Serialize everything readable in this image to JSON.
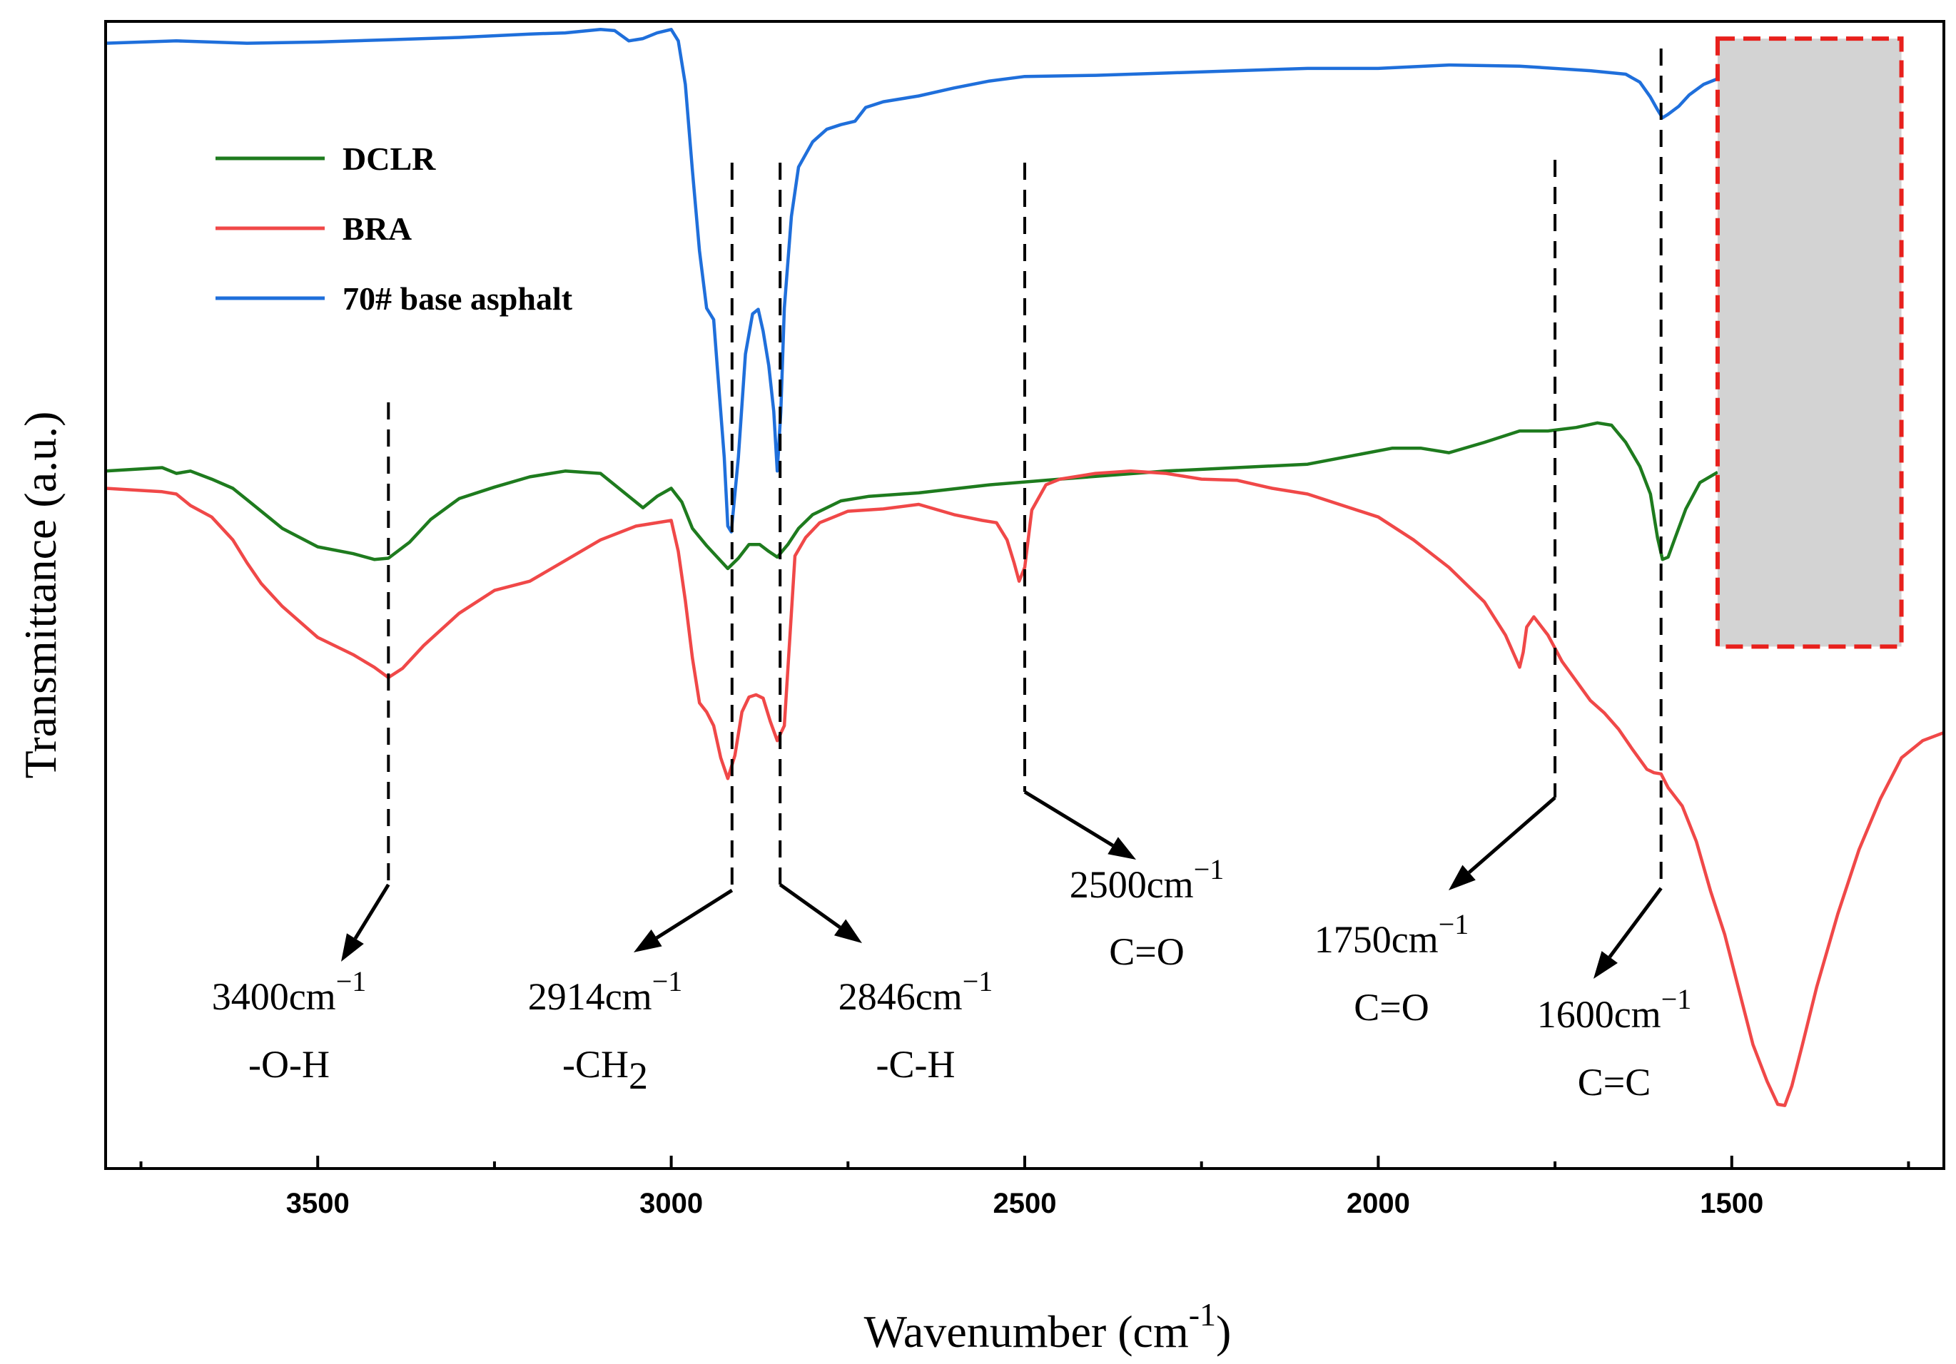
{
  "chart_data": {
    "type": "line",
    "title": "",
    "xlabel": "Wavenumber (cm",
    "xlabel_sup": "-1",
    "xlabel_close": ")",
    "ylabel": "Transmittance (a.u.)",
    "xlim": [
      3800,
      1200
    ],
    "ylim": [
      0,
      100
    ],
    "x_ticks": [
      3500,
      3000,
      2500,
      2000,
      1500
    ],
    "x_tick_labels": [
      "3500",
      "3000",
      "2500",
      "2000",
      "1500"
    ],
    "x_minor_ticks": [
      3750,
      3250,
      2750,
      2250,
      1750,
      1250
    ],
    "series": [
      {
        "name": "DCLR",
        "color": "#1e7b1e",
        "x": [
          3800,
          3720,
          3700,
          3680,
          3650,
          3620,
          3600,
          3550,
          3500,
          3450,
          3420,
          3400,
          3370,
          3340,
          3300,
          3250,
          3200,
          3150,
          3100,
          3060,
          3040,
          3020,
          3000,
          2985,
          2970,
          2950,
          2935,
          2920,
          2905,
          2890,
          2875,
          2862,
          2850,
          2835,
          2820,
          2800,
          2760,
          2720,
          2650,
          2550,
          2450,
          2300,
          2100,
          1980,
          1940,
          1900,
          1850,
          1800,
          1760,
          1720,
          1690,
          1670,
          1650,
          1630,
          1615,
          1605,
          1598,
          1590,
          1580,
          1565,
          1545,
          1520
        ],
        "y": [
          60.8,
          61.1,
          60.6,
          60.8,
          60.1,
          59.3,
          58.3,
          55.8,
          54.2,
          53.6,
          53.1,
          53.2,
          54.6,
          56.6,
          58.4,
          59.4,
          60.3,
          60.8,
          60.6,
          58.6,
          57.6,
          58.6,
          59.3,
          58.1,
          55.8,
          54.3,
          53.3,
          52.3,
          53.2,
          54.4,
          54.4,
          53.8,
          53.3,
          54.4,
          55.8,
          57.0,
          58.2,
          58.6,
          58.9,
          59.6,
          60.1,
          60.8,
          61.4,
          62.8,
          62.8,
          62.4,
          63.3,
          64.3,
          64.3,
          64.6,
          65.0,
          64.8,
          63.3,
          61.2,
          58.8,
          55.0,
          53.1,
          53.3,
          55.0,
          57.5,
          59.8,
          60.7
        ]
      },
      {
        "name": "BRA",
        "color": "#f04848",
        "x": [
          3800,
          3720,
          3700,
          3680,
          3650,
          3620,
          3600,
          3580,
          3550,
          3500,
          3450,
          3420,
          3400,
          3380,
          3350,
          3300,
          3250,
          3200,
          3150,
          3100,
          3050,
          3000,
          2990,
          2980,
          2970,
          2960,
          2950,
          2940,
          2930,
          2920,
          2910,
          2900,
          2890,
          2880,
          2870,
          2860,
          2850,
          2840,
          2825,
          2810,
          2790,
          2770,
          2750,
          2700,
          2650,
          2600,
          2560,
          2540,
          2525,
          2515,
          2508,
          2500,
          2490,
          2470,
          2450,
          2400,
          2350,
          2300,
          2250,
          2200,
          2150,
          2100,
          2000,
          1950,
          1900,
          1850,
          1820,
          1810,
          1800,
          1795,
          1790,
          1780,
          1760,
          1740,
          1720,
          1700,
          1680,
          1660,
          1640,
          1620,
          1610,
          1600,
          1590,
          1570,
          1550,
          1530,
          1510,
          1490,
          1470,
          1450,
          1435,
          1425,
          1415,
          1400,
          1380,
          1350,
          1320,
          1290,
          1260,
          1230,
          1200
        ],
        "y": [
          59.3,
          59.0,
          58.8,
          57.8,
          56.8,
          54.8,
          52.8,
          51.0,
          49.0,
          46.3,
          44.8,
          43.7,
          42.8,
          43.6,
          45.6,
          48.4,
          50.4,
          51.2,
          53.0,
          54.8,
          56.0,
          56.5,
          53.8,
          49.5,
          44.5,
          40.6,
          39.8,
          38.6,
          35.8,
          34.0,
          36.0,
          39.8,
          41.1,
          41.3,
          41.0,
          39.0,
          37.3,
          38.6,
          53.4,
          55.0,
          56.3,
          56.8,
          57.3,
          57.5,
          57.9,
          57.0,
          56.5,
          56.3,
          54.8,
          52.8,
          51.2,
          52.4,
          57.4,
          59.6,
          60.1,
          60.6,
          60.8,
          60.6,
          60.1,
          60.0,
          59.3,
          58.8,
          56.8,
          54.8,
          52.4,
          49.4,
          46.5,
          45.1,
          43.7,
          45.0,
          47.2,
          48.1,
          46.5,
          44.2,
          42.5,
          40.8,
          39.7,
          38.3,
          36.5,
          34.8,
          34.5,
          34.4,
          33.2,
          31.6,
          28.5,
          24.2,
          20.4,
          15.6,
          10.8,
          7.6,
          5.6,
          5.5,
          7.2,
          10.8,
          15.8,
          22.2,
          27.8,
          32.2,
          35.8,
          37.3,
          38.0
        ]
      },
      {
        "name": "70# base asphalt",
        "color": "#1f6fdb",
        "x": [
          3800,
          3700,
          3600,
          3500,
          3400,
          3300,
          3200,
          3150,
          3100,
          3080,
          3060,
          3040,
          3020,
          3000,
          2990,
          2980,
          2970,
          2960,
          2950,
          2940,
          2935,
          2925,
          2920,
          2915,
          2905,
          2895,
          2885,
          2877,
          2870,
          2862,
          2855,
          2850,
          2845,
          2840,
          2830,
          2820,
          2800,
          2780,
          2760,
          2740,
          2725,
          2700,
          2650,
          2600,
          2550,
          2500,
          2400,
          2300,
          2200,
          2100,
          2000,
          1900,
          1800,
          1700,
          1650,
          1630,
          1615,
          1605,
          1598,
          1590,
          1575,
          1560,
          1540,
          1520
        ],
        "y": [
          98.1,
          98.3,
          98.1,
          98.2,
          98.4,
          98.6,
          98.9,
          99.0,
          99.3,
          99.2,
          98.3,
          98.5,
          99.0,
          99.3,
          98.3,
          94.5,
          87.0,
          80.0,
          75.0,
          74.0,
          70.0,
          62.0,
          56.0,
          55.5,
          62.0,
          71.0,
          74.5,
          74.9,
          73.0,
          70.0,
          66.0,
          60.8,
          66.0,
          75.0,
          83.0,
          87.3,
          89.5,
          90.6,
          91.0,
          91.3,
          92.5,
          93.0,
          93.5,
          94.2,
          94.8,
          95.2,
          95.3,
          95.5,
          95.7,
          95.9,
          95.9,
          96.2,
          96.1,
          95.7,
          95.4,
          94.7,
          93.4,
          92.3,
          91.6,
          91.9,
          92.6,
          93.6,
          94.5,
          95.0
        ]
      }
    ],
    "legend": {
      "position": "top-left",
      "entries": [
        "DCLR",
        "BRA",
        "70# base asphalt"
      ]
    },
    "annotations": [
      {
        "wavenumber": 3400,
        "value": "3400cm",
        "exp": "−1",
        "group": "-O-H",
        "group_sub": ""
      },
      {
        "wavenumber": 2914,
        "value": "2914cm",
        "exp": "−1",
        "group": "-CH",
        "group_sub": "2"
      },
      {
        "wavenumber": 2846,
        "value": "2846cm",
        "exp": "−1",
        "group": "-C-H",
        "group_sub": ""
      },
      {
        "wavenumber": 2500,
        "value": "2500cm",
        "exp": "−1",
        "group": "C=O",
        "group_sub": ""
      },
      {
        "wavenumber": 1750,
        "value": "1750cm",
        "exp": "−1",
        "group": "C=O",
        "group_sub": ""
      },
      {
        "wavenumber": 1600,
        "value": "1600cm",
        "exp": "−1",
        "group": "C=C",
        "group_sub": ""
      }
    ],
    "masked_region": {
      "x": [
        1520,
        1260
      ],
      "y": [
        45.5,
        98.5
      ],
      "fill": "#d3d3d3",
      "border": "#e8201c"
    },
    "grid": false
  }
}
